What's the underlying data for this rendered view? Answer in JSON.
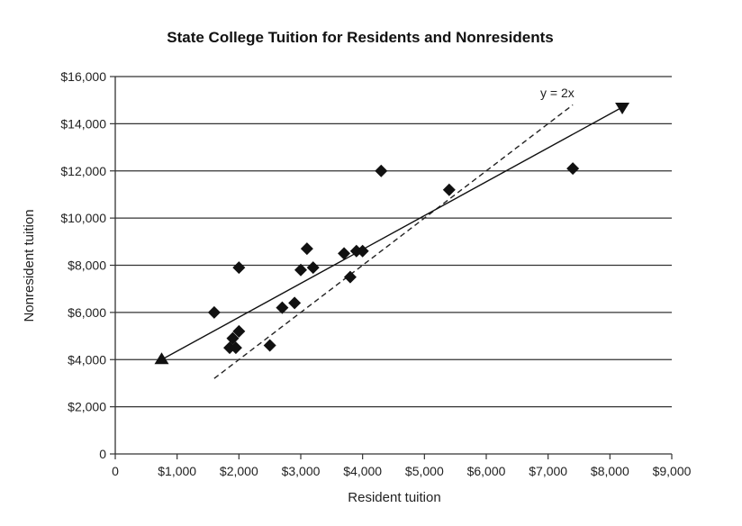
{
  "chart_data": {
    "type": "scatter",
    "title": "State College Tuition for Residents and Nonresidents",
    "xlabel": "Resident tuition",
    "ylabel": "Nonresident tuition",
    "xlim": [
      0,
      9000
    ],
    "ylim": [
      0,
      16000
    ],
    "x_ticks": [
      0,
      1000,
      2000,
      3000,
      4000,
      5000,
      6000,
      7000,
      8000,
      9000
    ],
    "x_tick_labels": [
      "0",
      "$1,000",
      "$2,000",
      "$3,000",
      "$4,000",
      "$5,000",
      "$6,000",
      "$7,000",
      "$8,000",
      "$9,000"
    ],
    "y_ticks": [
      0,
      2000,
      4000,
      6000,
      8000,
      10000,
      12000,
      14000,
      16000
    ],
    "y_tick_labels": [
      "0",
      "$2,000",
      "$4,000",
      "$6,000",
      "$8,000",
      "$10,000",
      "$12,000",
      "$14,000",
      "$16,000"
    ],
    "grid": "horizontal",
    "points": [
      {
        "x": 1600,
        "y": 6000
      },
      {
        "x": 2000,
        "y": 7900
      },
      {
        "x": 1850,
        "y": 4500
      },
      {
        "x": 1950,
        "y": 4500
      },
      {
        "x": 1900,
        "y": 4900
      },
      {
        "x": 2000,
        "y": 5200
      },
      {
        "x": 2500,
        "y": 4600
      },
      {
        "x": 2700,
        "y": 6200
      },
      {
        "x": 2900,
        "y": 6400
      },
      {
        "x": 3000,
        "y": 7800
      },
      {
        "x": 3100,
        "y": 8700
      },
      {
        "x": 3200,
        "y": 7900
      },
      {
        "x": 3700,
        "y": 8500
      },
      {
        "x": 3800,
        "y": 7500
      },
      {
        "x": 3900,
        "y": 8600
      },
      {
        "x": 4000,
        "y": 8600
      },
      {
        "x": 4300,
        "y": 12000
      },
      {
        "x": 5400,
        "y": 11200
      },
      {
        "x": 7400,
        "y": 12100
      }
    ],
    "fit_line": {
      "x1": 750,
      "y1": 4000,
      "x2": 8200,
      "y2": 14700
    },
    "reference_line": {
      "label": "y = 2x",
      "x1": 1600,
      "y1": 3200,
      "x2": 7400,
      "y2": 14800
    }
  }
}
